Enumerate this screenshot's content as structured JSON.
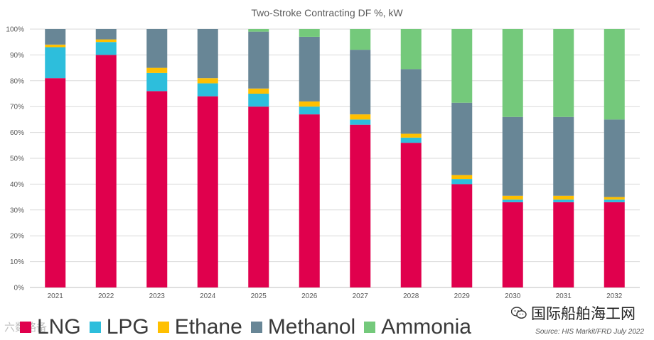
{
  "chart_data": {
    "type": "bar",
    "stacked": true,
    "title": "Two-Stroke Contracting DF %, kW",
    "xlabel": "",
    "ylabel": "",
    "ylim": [
      0,
      100
    ],
    "y_ticks": [
      "0%",
      "10%",
      "20%",
      "30%",
      "40%",
      "50%",
      "60%",
      "70%",
      "80%",
      "90%",
      "100%"
    ],
    "grid": true,
    "legend_position": "bottom",
    "categories": [
      "2021",
      "2022",
      "2023",
      "2024",
      "2025",
      "2026",
      "2027",
      "2028",
      "2029",
      "2030",
      "2031",
      "2032"
    ],
    "series": [
      {
        "name": "LNG",
        "color": "#e0004d",
        "values": [
          81,
          90,
          76,
          74,
          70,
          67,
          63,
          56,
          40,
          33,
          33,
          33
        ]
      },
      {
        "name": "LPG",
        "color": "#2dbedc",
        "values": [
          12,
          5,
          7,
          5,
          5,
          3,
          2,
          2,
          2,
          1,
          1,
          1
        ]
      },
      {
        "name": "Ethane",
        "color": "#ffc000",
        "values": [
          1,
          1,
          2,
          2,
          2,
          2,
          2,
          1.5,
          1.5,
          1.5,
          1.5,
          1
        ]
      },
      {
        "name": "Methanol",
        "color": "#688696",
        "values": [
          6,
          4,
          15,
          19,
          22,
          25,
          25,
          25,
          28,
          30.5,
          30.5,
          30
        ]
      },
      {
        "name": "Ammonia",
        "color": "#74c97b",
        "values": [
          0,
          0,
          0,
          0,
          1,
          3,
          8,
          15.5,
          28.5,
          34,
          34,
          35
        ]
      }
    ]
  },
  "source_text": "Source: HIS Markit/FRD July 2022",
  "watermark_left": "六数略备",
  "watermark_right": "国际船舶海工网",
  "colors": {
    "grid": "#d9d9d9",
    "axis": "#bfbfbf",
    "text": "#595959"
  }
}
